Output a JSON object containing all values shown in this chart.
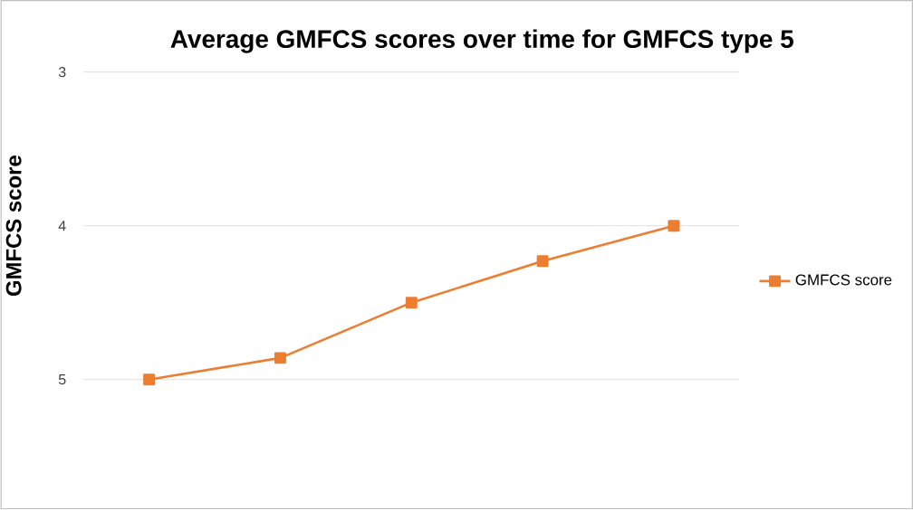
{
  "chart_data": {
    "type": "line",
    "title": "Average GMFCS scores over time for GMFCS type 5",
    "ylabel": "GMFCS score",
    "categories": [
      null,
      null,
      null,
      null,
      null
    ],
    "series": [
      {
        "name": "GMFCS score",
        "color": "#ed7d31",
        "values": [
          5.0,
          4.86,
          4.5,
          4.23,
          4.0
        ]
      }
    ],
    "ylim": [
      5,
      3
    ],
    "yticks": [
      3,
      4,
      5
    ],
    "grid": "y",
    "legend": "right",
    "marker": "square",
    "line_style": "solid"
  }
}
